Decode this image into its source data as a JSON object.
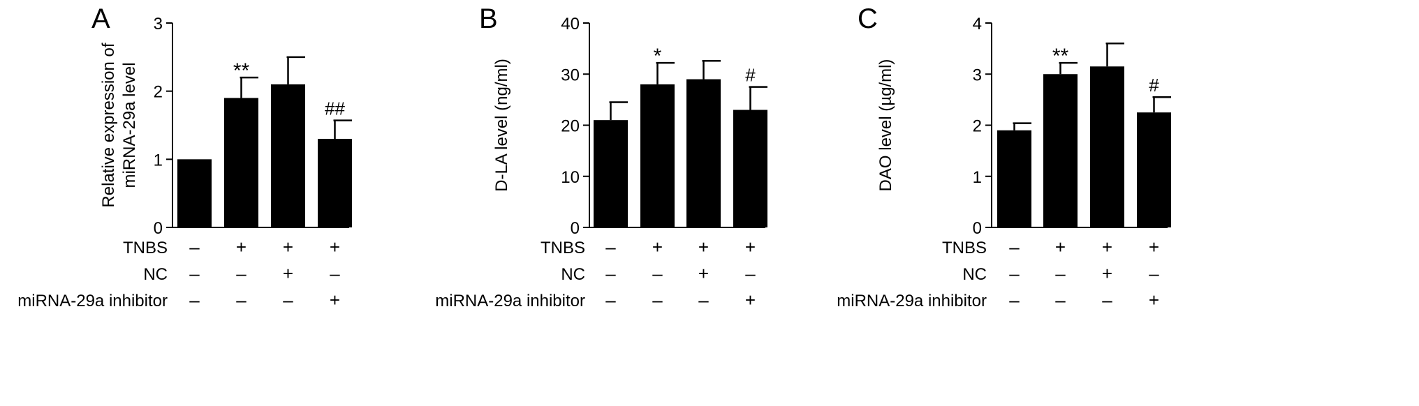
{
  "chart_data": [
    {
      "type": "bar",
      "panel_label": "A",
      "ylabel_lines": [
        "Relative expression of",
        "miRNA-29a level"
      ],
      "ylim": [
        0,
        3
      ],
      "yticks": [
        "0",
        "1",
        "2",
        "3"
      ],
      "values": [
        1.0,
        1.9,
        2.1,
        1.3
      ],
      "errors": [
        0.0,
        0.3,
        0.4,
        0.27
      ],
      "annotations": [
        "",
        "**",
        "",
        "##"
      ],
      "bar_color": "#000000"
    },
    {
      "type": "bar",
      "panel_label": "B",
      "ylabel_lines": [
        "D-LA level (ng/ml)"
      ],
      "ylim": [
        0,
        40
      ],
      "yticks": [
        "0",
        "10",
        "20",
        "30",
        "40"
      ],
      "values": [
        21,
        28,
        29,
        23
      ],
      "errors": [
        3.5,
        4.2,
        3.6,
        4.5
      ],
      "annotations": [
        "",
        "*",
        "",
        "#"
      ],
      "bar_color": "#000000"
    },
    {
      "type": "bar",
      "panel_label": "C",
      "ylabel_lines": [
        "DAO level (µg/ml)"
      ],
      "ylim": [
        0,
        4
      ],
      "yticks": [
        "0",
        "1",
        "2",
        "3",
        "4"
      ],
      "values": [
        1.9,
        3.0,
        3.15,
        2.25
      ],
      "errors": [
        0.14,
        0.22,
        0.45,
        0.3
      ],
      "annotations": [
        "",
        "**",
        "",
        "#"
      ],
      "bar_color": "#000000"
    }
  ],
  "conditions": [
    {
      "label": "TNBS",
      "signs": [
        "–",
        "+",
        "+",
        "+"
      ]
    },
    {
      "label": "NC",
      "signs": [
        "–",
        "–",
        "+",
        "–"
      ]
    },
    {
      "label": "miRNA-29a inhibitor",
      "signs": [
        "–",
        "–",
        "–",
        "+"
      ]
    }
  ]
}
